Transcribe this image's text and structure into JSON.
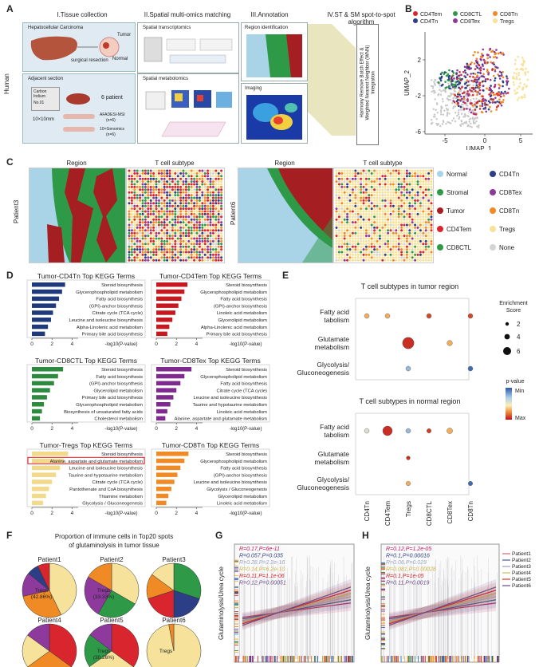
{
  "panel_labels": {
    "A": "A",
    "B": "B",
    "C": "C",
    "D": "D",
    "E": "E",
    "F": "F",
    "G": "G",
    "H": "H"
  },
  "panelA": {
    "species": "Human",
    "sec1": "I.Tissue collection",
    "sec2": "II.Spatial multi-omics matching",
    "sec3": "III.Annotation",
    "sec4a": "IV.ST & SM spot-to-spot",
    "sec4b": "algorithm",
    "hcc": "Hepatocellular Carcinoma",
    "tumor": "Tumor",
    "normal": "Normal",
    "surgical": "surgical resection",
    "adjacent": "Adjacent section",
    "carbon": "Carbon Indium",
    "no": "No.01",
    "patient": "6 patient",
    "size": "10×10mm",
    "afadesi": "AFADESI-MSI",
    "afadesi_n": "(n=6)",
    "genomics": "10×Genomics",
    "genomics_n": "(n=6)",
    "st": "Spatial transcriptomics",
    "sm": "Spatial metabolomics",
    "region_id": "Region identification",
    "imaging": "Imaging",
    "harmony": "Harmony Remove Batch Effect &",
    "wnn": "Weighted Nearest Neighbor (WNN)",
    "integration": "Integration"
  },
  "panelB": {
    "legend": [
      {
        "label": "CD4Tem",
        "color": "#d9262e"
      },
      {
        "label": "CD8CTL",
        "color": "#2e9a48"
      },
      {
        "label": "CD8Tn",
        "color": "#f08a24"
      },
      {
        "label": "CD4Tn",
        "color": "#2c3e86"
      },
      {
        "label": "CD8Tex",
        "color": "#8e3a9d"
      },
      {
        "label": "Tregs",
        "color": "#f6e29a"
      }
    ],
    "xlabel": "UMAP_1",
    "ylabel": "UMAP_2",
    "xticks": [
      "-5",
      "0",
      "5"
    ],
    "yticks": [
      "2",
      "-2",
      "-6"
    ]
  },
  "panelC": {
    "region": "Region",
    "tcell": "T cell subtype",
    "p3": "Patient3",
    "p6": "Patient6",
    "legend": [
      {
        "label": "Normal",
        "color": "#a9d4e8"
      },
      {
        "label": "CD4Tn",
        "color": "#2c3e86"
      },
      {
        "label": "Stromal",
        "color": "#2e9a48"
      },
      {
        "label": "CD8Tex",
        "color": "#8e3a9d"
      },
      {
        "label": "Tumor",
        "color": "#a51e22"
      },
      {
        "label": "CD8Tn",
        "color": "#f08a24"
      },
      {
        "label": "CD4Tem",
        "color": "#d9262e"
      },
      {
        "label": "Tregs",
        "color": "#f6e29a"
      },
      {
        "label": "CD8CTL",
        "color": "#2e9a48"
      },
      {
        "label": "None",
        "color": "#d4d4d4"
      }
    ]
  },
  "panelD": {
    "xlabel": "-log10(P-value)",
    "charts": [
      {
        "title": "Tumor-CD4Tn  Top KEGG Terms",
        "color": "#1f3a7a",
        "ticks": [
          "0",
          "2",
          "4"
        ],
        "max": 4.6,
        "terms": [
          "Steroid biosynthesis",
          "Glycerophospholipid metabolism",
          "Fatty acid biosynthesis",
          "(GPI)-anchor biosynthesis",
          "Citrate cycle (TCA cycle)",
          "Leucine and isoleucine biosynthesis",
          "Alpha-Linolenic acid metabolism",
          "Primary bile acid biosynthesis"
        ],
        "values": [
          3.3,
          3.0,
          2.7,
          2.4,
          2.1,
          1.9,
          1.6,
          1.3
        ]
      },
      {
        "title": "Tumor-CD4Tem  Top KEGG Terms",
        "color": "#c8181f",
        "ticks": [
          "0",
          "2",
          "4"
        ],
        "max": 4.6,
        "terms": [
          "Steroid biosynthesis",
          "Glycerophospholipid metabolism",
          "Fatty acid biosynthesis",
          "(GPI)-anchor biosynthesis",
          "Linoleic acid metabolism",
          "Glycerolipid metabolism",
          "Alpha-Linolenic acid metabolism",
          "Primary bile acid biosynthesis"
        ],
        "values": [
          3.1,
          2.8,
          2.5,
          2.2,
          1.9,
          1.6,
          1.3,
          1.1
        ]
      },
      {
        "title": "Tumor-CD8CTL  Top KEGG Terms",
        "color": "#2e8a3e",
        "ticks": [
          "0",
          "2",
          "4"
        ],
        "max": 4.6,
        "terms": [
          "Steroid biosynthesis",
          "Fatty acid biosynthesis",
          "(GPI)-anchor biosynthesis",
          "Glycerolipid metabolism",
          "Primary bile acid biosynthesis",
          "Glycerophospholipid metabolism",
          "Biosynthesis of unsaturated fatty acids",
          "Cholesterol metabolism"
        ],
        "values": [
          3.1,
          2.6,
          2.2,
          1.8,
          1.5,
          1.2,
          1.0,
          0.8
        ]
      },
      {
        "title": "Tumor-CD8Tex  Top KEGG Terms",
        "color": "#7e2a8e",
        "ticks": [
          "0",
          "2",
          "4"
        ],
        "max": 4.6,
        "terms": [
          "Steroid biosynthesis",
          "Glycerophospholipid metabolism",
          "Fatty acid biosynthesis",
          "Citrate cycle (TCA cycle)",
          "Leucine and isoleucine biosynthesis",
          "Taurine and hypotaurine metabolism",
          "Linoleic acid metabolism",
          "Alanine, aspartate and glutamate metabolism"
        ],
        "values": [
          3.5,
          2.8,
          2.4,
          2.0,
          1.7,
          1.4,
          1.1,
          0.9
        ]
      },
      {
        "title": "Tumor-Tregs  Top KEGG Terms",
        "color": "#f3d98a",
        "ticks": [
          "0",
          "2",
          "4"
        ],
        "max": 4.6,
        "terms": [
          "Steroid biosynthesis",
          "Alanine, aspartate and glutamate metabolism",
          "Leucine and isoleucine biosynthesis",
          "Taurine and hypotaurine metabolism",
          "Citrate cycle (TCA cycle)",
          "Pantothenate and CoA biosynthesis",
          "Thiamine metabolism",
          "Glycolysis / Gluconeogenesis"
        ],
        "values": [
          3.6,
          3.2,
          2.8,
          2.4,
          2.0,
          1.7,
          1.4,
          1.1
        ],
        "highlight": 1
      },
      {
        "title": "Tumor-CD8Tn  Top KEGG Terms",
        "color": "#f08a24",
        "ticks": [
          "0",
          "2",
          "4"
        ],
        "max": 4.6,
        "terms": [
          "Steroid biosynthesis",
          "Glycerophospholipid metabolism",
          "Fatty acid biosynthesis",
          "(GPI)-anchor biosynthesis",
          "Leucine and isoleucine biosynthesis",
          "Glycolysis / Gluconeogenesis",
          "Glycerolipid metabolism",
          "Linoleic acid metabolism"
        ],
        "values": [
          3.2,
          2.8,
          2.4,
          2.1,
          1.8,
          1.5,
          1.2,
          1.0
        ]
      }
    ]
  },
  "panelE": {
    "title_tumor": "T cell subtypes in tumor region",
    "title_normal": "T cell subtypes in normal region",
    "rows": [
      [
        "Fatty acid",
        "tabolism"
      ],
      [
        "Glutamate",
        "metabolism"
      ],
      [
        "Glycolysis/",
        "Gluconeogenesis"
      ]
    ],
    "cols": [
      "CD4Tn",
      "CD4Tem",
      "Tregs",
      "CD8CTL",
      "CD8Tex",
      "CD8Tn"
    ],
    "enrich_title": "Enrichment\nScore",
    "enrich_vals": [
      "2",
      "4",
      "6"
    ],
    "pval_title": "p-value",
    "pmin": "Min",
    "pmax": "Max",
    "chart_data": [
      {
        "type": "scatter",
        "region": "tumor",
        "points": [
          {
            "row": 0,
            "col": 0,
            "size": 2.5,
            "p": 0.7
          },
          {
            "row": 0,
            "col": 1,
            "size": 2.5,
            "p": 0.7
          },
          {
            "row": 0,
            "col": 3,
            "size": 2.5,
            "p": 0.9
          },
          {
            "row": 0,
            "col": 5,
            "size": 2.5,
            "p": 0.9
          },
          {
            "row": 1,
            "col": 2,
            "size": 6,
            "p": 0.95
          },
          {
            "row": 1,
            "col": 4,
            "size": 2.8,
            "p": 0.7
          },
          {
            "row": 2,
            "col": 2,
            "size": 2.5,
            "p": 0.25
          },
          {
            "row": 2,
            "col": 5,
            "size": 2.5,
            "p": 0.05
          }
        ]
      },
      {
        "type": "scatter",
        "region": "normal",
        "points": [
          {
            "row": 0,
            "col": 0,
            "size": 2.5,
            "p": 0.45
          },
          {
            "row": 0,
            "col": 1,
            "size": 5,
            "p": 0.95
          },
          {
            "row": 0,
            "col": 2,
            "size": 2.5,
            "p": 0.25
          },
          {
            "row": 0,
            "col": 3,
            "size": 2.3,
            "p": 0.92
          },
          {
            "row": 0,
            "col": 4,
            "size": 3,
            "p": 0.7
          },
          {
            "row": 1,
            "col": 2,
            "size": 2,
            "p": 0.95
          },
          {
            "row": 2,
            "col": 2,
            "size": 2.3,
            "p": 0.7
          },
          {
            "row": 2,
            "col": 5,
            "size": 2.3,
            "p": 0.05
          }
        ]
      }
    ]
  },
  "panelF": {
    "title1": "Proportion of immune cells in Top20 spots",
    "title2": "of glutaminolysis in tumor tissue",
    "chart_data": [
      {
        "type": "pie",
        "patient": "Patient1",
        "categories": [
          "Tregs",
          "CD8Tn",
          "CD8Tex",
          "CD4Tn",
          "CD4Tem"
        ],
        "values": [
          42.86,
          28.6,
          14.3,
          7.1,
          7.1
        ],
        "label": "Tregs\n(42.86%)"
      },
      {
        "type": "pie",
        "patient": "Patient2",
        "categories": [
          "Tregs",
          "CD8CTL",
          "CD8Tex",
          "CD8Tn"
        ],
        "values": [
          33.33,
          25,
          25,
          16.67
        ],
        "label": "Tregs\n(33.33%)"
      },
      {
        "type": "pie",
        "patient": "Patient3",
        "categories": [
          "CD8CTL",
          "CD4Tn",
          "CD4Tem",
          "CD8Tn",
          "Tregs"
        ],
        "values": [
          30,
          20,
          20,
          15,
          15
        ],
        "label": ""
      },
      {
        "type": "pie",
        "patient": "Patient4",
        "categories": [
          "CD4Tem",
          "CD8Tn",
          "Tregs",
          "CD8Tex"
        ],
        "values": [
          35,
          30,
          20,
          15
        ],
        "label": ""
      },
      {
        "type": "pie",
        "patient": "Patient5",
        "categories": [
          "CD4Tem",
          "Tregs",
          "CD8CTL",
          "CD8Tex"
        ],
        "values": [
          35,
          30.26,
          20,
          14.74
        ],
        "label": "Tregs\n(30.26%)"
      },
      {
        "type": "pie",
        "patient": "Patient6",
        "categories": [
          "Tregs",
          "CD8Tn"
        ],
        "values": [
          97,
          3
        ],
        "label": "Tregs"
      }
    ],
    "colors": {
      "Tregs": "#f6e29a",
      "CD8Tn": "#f08a24",
      "CD8Tex": "#8e3a9d",
      "CD4Tn": "#2c3e86",
      "CD4Tem": "#d9262e",
      "CD8CTL": "#2e9a48"
    }
  },
  "panelG": {
    "ylabel": "Glutaminolysis/Urea cycle",
    "stats": [
      {
        "text": "R=0.17,P=6e-11",
        "color": "#c2185b"
      },
      {
        "text": "R=0.057,P=0.035",
        "color": "#2c3e86"
      },
      {
        "text": "R=0.28,P=2.2e-16",
        "color": "#9aa8c8"
      },
      {
        "text": "R=0.14,P=6.2e-10",
        "color": "#c8b34a"
      },
      {
        "text": "R=0.11,P=1.1e-06",
        "color": "#d9262e"
      },
      {
        "text": "R=0.12,P=0.00051",
        "color": "#6a4a8a"
      }
    ]
  },
  "panelH": {
    "ylabel": "Glutaminolysis/Urea cycle",
    "stats": [
      {
        "text": "R=0.12,P=1.2e-05",
        "color": "#c2185b"
      },
      {
        "text": "R=0.1,P=0.00016",
        "color": "#2c3e86"
      },
      {
        "text": "R=0.06,P=0.029",
        "color": "#9aa8c8"
      },
      {
        "text": "R=0.081,P=0.00028",
        "color": "#c8b34a"
      },
      {
        "text": "R=0.1,P=1e-05",
        "color": "#d9262e"
      },
      {
        "text": "R=0.11,P=0.0019",
        "color": "#6a4a8a"
      }
    ],
    "legend": [
      "Patient1",
      "Patient2",
      "Patient3",
      "Patient4",
      "Patient5",
      "Patient6"
    ],
    "legend_colors": [
      "#e08098",
      "#6a7ab8",
      "#b0b0d8",
      "#d8c878",
      "#e06050",
      "#8a6aa8"
    ]
  }
}
